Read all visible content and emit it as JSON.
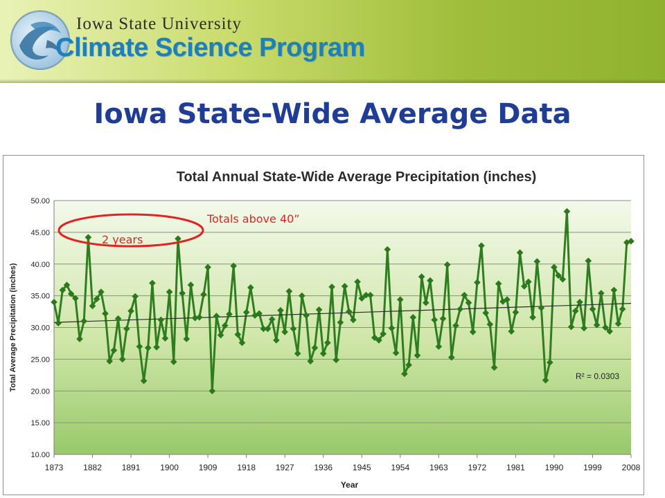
{
  "header": {
    "university": "Iowa State University",
    "program": "Climate Science Program",
    "logo_icon": "globe-swirl-logo-icon",
    "colors": {
      "program_blue": "#1c7fc0",
      "banner_green": "#9fbd3a"
    }
  },
  "slide": {
    "title": "Iowa State-Wide Average Data",
    "title_color": "#1f3c96"
  },
  "annotations": {
    "totals_above": "Totals above 40”",
    "years_count": "2 years",
    "color": "#e02424"
  },
  "chart_data": {
    "type": "line",
    "title": "Total Annual State-Wide Average Precipitation (inches)",
    "xlabel": "Year",
    "ylabel": "Total Average Precipitation (inches)",
    "xlim": [
      1873,
      2008
    ],
    "ylim": [
      10,
      50
    ],
    "xticks": [
      1873,
      1882,
      1891,
      1900,
      1909,
      1918,
      1927,
      1936,
      1945,
      1954,
      1963,
      1972,
      1981,
      1990,
      1999,
      2008
    ],
    "ytick_labels": [
      "10.00",
      "15.00",
      "20.00",
      "25.00",
      "30.00",
      "35.00",
      "40.00",
      "45.00",
      "50.00"
    ],
    "grid": "horizontal",
    "colors": {
      "line": "#2e7d1f",
      "marker": "#2a7a1c",
      "trend": "#2b2b2b"
    },
    "series": [
      {
        "x": [
          1873,
          1874,
          1875,
          1876,
          1877,
          1878,
          1879,
          1880,
          1881,
          1882,
          1883,
          1884,
          1885,
          1886,
          1887,
          1888,
          1889,
          1890,
          1891,
          1892,
          1893,
          1894,
          1895,
          1896,
          1897,
          1898,
          1899,
          1900,
          1901,
          1902,
          1903,
          1904,
          1905,
          1906,
          1907,
          1908,
          1909,
          1910,
          1911,
          1912,
          1913,
          1914,
          1915,
          1916,
          1917,
          1918,
          1919,
          1920,
          1921,
          1922,
          1923,
          1924,
          1925,
          1926,
          1927,
          1928,
          1929,
          1930,
          1931,
          1932,
          1933,
          1934,
          1935,
          1936,
          1937,
          1938,
          1939,
          1940,
          1941,
          1942,
          1943,
          1944,
          1945,
          1946,
          1947,
          1948,
          1949,
          1950,
          1951,
          1952,
          1953,
          1954,
          1955,
          1956,
          1957,
          1958,
          1959,
          1960,
          1961,
          1962,
          1963,
          1964,
          1965,
          1966,
          1967,
          1968,
          1969,
          1970,
          1971,
          1972,
          1973,
          1974,
          1975,
          1976,
          1977,
          1978,
          1979,
          1980,
          1981,
          1982,
          1983,
          1984,
          1985,
          1986,
          1987,
          1988,
          1989,
          1990,
          1991,
          1992,
          1993,
          1994,
          1995,
          1996,
          1997,
          1998,
          1999,
          2000,
          2001,
          2002,
          2003,
          2004,
          2005,
          2006,
          2007,
          2008
        ],
        "values": [
          34.0,
          30.7,
          35.9,
          36.7,
          35.3,
          34.6,
          28.2,
          31.0,
          44.2,
          33.4,
          34.5,
          35.6,
          32.2,
          24.7,
          26.4,
          31.4,
          25.0,
          29.8,
          32.6,
          34.9,
          27.0,
          21.6,
          26.8,
          37.0,
          26.9,
          31.2,
          28.3,
          35.6,
          24.6,
          44.0,
          35.4,
          28.2,
          36.7,
          31.5,
          31.6,
          35.2,
          39.5,
          20.0,
          31.8,
          28.8,
          30.3,
          32.1,
          39.7,
          28.9,
          27.6,
          32.4,
          36.3,
          31.9,
          32.2,
          29.8,
          29.8,
          31.3,
          28.0,
          32.7,
          29.3,
          35.7,
          29.8,
          25.9,
          35.0,
          31.9,
          24.7,
          26.8,
          32.8,
          25.9,
          27.6,
          36.4,
          24.9,
          30.8,
          36.5,
          32.5,
          31.2,
          37.2,
          34.6,
          35.1,
          35.1,
          28.4,
          28.0,
          29.0,
          42.3,
          29.9,
          26.0,
          34.4,
          22.7,
          24.1,
          31.6,
          25.6,
          38.0,
          33.9,
          37.4,
          31.2,
          27.0,
          31.4,
          39.9,
          25.3,
          30.3,
          32.9,
          35.1,
          33.9,
          29.3,
          37.1,
          42.9,
          32.3,
          30.5,
          23.7,
          36.9,
          34.1,
          34.4,
          29.4,
          32.4,
          41.8,
          36.5,
          37.2,
          31.6,
          40.4,
          33.1,
          21.7,
          24.5,
          39.5,
          38.2,
          37.6,
          48.3,
          30.1,
          32.6,
          34.0,
          29.9,
          40.5,
          32.9,
          30.4,
          35.4,
          30.0,
          29.4,
          35.9,
          30.6,
          32.9,
          43.4,
          43.6
        ]
      }
    ],
    "trendline": {
      "type": "linear",
      "label": "R² = 0.0303",
      "start": 30.8,
      "end": 33.8
    }
  }
}
